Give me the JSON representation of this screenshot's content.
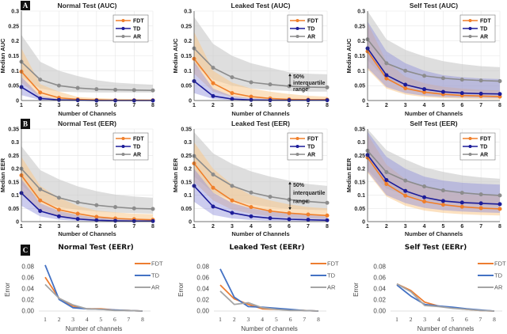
{
  "colors": {
    "FDT": "#f07f2a",
    "TD": "#1c1c99",
    "AR": "#8c8c8c",
    "FDT_band": "#f9c98d",
    "TD_band": "#8f8fd9",
    "AR_band": "#c8c8c8",
    "FDT_C": "#ed7d31",
    "TD_C": "#4472c4",
    "AR_C": "#a5a5a5"
  },
  "panel_labels": [
    "A",
    "B",
    "C"
  ],
  "legend": [
    "FDT",
    "TD",
    "AR"
  ],
  "chart_data": [
    {
      "id": "A1",
      "type": "line",
      "title": "Normal Test (AUC)",
      "xlabel": "Number of Channels",
      "ylabel": "Median AUC",
      "x": [
        1,
        2,
        3,
        4,
        5,
        6,
        7,
        8
      ],
      "xlim": [
        1,
        8
      ],
      "ylim": [
        0,
        0.3
      ],
      "yticks": [
        0,
        0.05,
        0.1,
        0.15,
        0.2,
        0.25,
        0.3
      ],
      "ytick_labels": [
        "0",
        "0.05",
        "0.1",
        "0.15",
        "0.2",
        "0.25",
        "0.3"
      ],
      "grid": true,
      "legend_position": "top-right",
      "series": [
        {
          "name": "FDT",
          "values": [
            0.097,
            0.027,
            0.009,
            0.004,
            0.002,
            0.001,
            0.001,
            0.001
          ],
          "lower": [
            0.06,
            0.01,
            0.002,
            0.001,
            0.0,
            0.0,
            0.0,
            0.0
          ],
          "upper": [
            0.175,
            0.055,
            0.03,
            0.012,
            0.008,
            0.006,
            0.005,
            0.004
          ]
        },
        {
          "name": "TD",
          "values": [
            0.045,
            0.007,
            0.002,
            0.001,
            0.0,
            0.0,
            0.0,
            0.0
          ],
          "lower": [
            0.018,
            0.002,
            0.0,
            0.0,
            0.0,
            0.0,
            0.0,
            0.0
          ],
          "upper": [
            0.08,
            0.015,
            0.005,
            0.003,
            0.002,
            0.001,
            0.001,
            0.001
          ]
        },
        {
          "name": "AR",
          "values": [
            0.13,
            0.07,
            0.05,
            0.042,
            0.038,
            0.036,
            0.035,
            0.034
          ],
          "lower": [
            0.08,
            0.04,
            0.03,
            0.028,
            0.027,
            0.027,
            0.027,
            0.027
          ],
          "upper": [
            0.22,
            0.13,
            0.1,
            0.082,
            0.068,
            0.06,
            0.056,
            0.053
          ]
        }
      ]
    },
    {
      "id": "A2",
      "type": "line",
      "title": "Leaked Test (AUC)",
      "xlabel": "Number of Channels",
      "ylabel": "Median AUC",
      "x": [
        1,
        2,
        3,
        4,
        5,
        6,
        7,
        8
      ],
      "xlim": [
        1,
        8
      ],
      "ylim": [
        0,
        0.3
      ],
      "yticks": [
        0,
        0.05,
        0.1,
        0.15,
        0.2,
        0.25,
        0.3
      ],
      "ytick_labels": [
        "0",
        "0.05",
        "0.1",
        "0.15",
        "0.2",
        "0.25",
        "0.3"
      ],
      "grid": true,
      "legend_position": "top-right",
      "annotation": {
        "text": [
          "50%",
          "interquartile",
          "range"
        ],
        "x": 6,
        "y_from": 0.045,
        "y_to": 0.09
      },
      "series": [
        {
          "name": "FDT",
          "values": [
            0.14,
            0.058,
            0.025,
            0.013,
            0.007,
            0.004,
            0.003,
            0.003
          ],
          "lower": [
            0.09,
            0.03,
            0.012,
            0.006,
            0.003,
            0.002,
            0.001,
            0.001
          ],
          "upper": [
            0.23,
            0.1,
            0.06,
            0.04,
            0.03,
            0.022,
            0.016,
            0.013
          ]
        },
        {
          "name": "TD",
          "values": [
            0.065,
            0.015,
            0.005,
            0.002,
            0.001,
            0.001,
            0.001,
            0.001
          ],
          "lower": [
            0.025,
            0.005,
            0.001,
            0.0,
            0.0,
            0.0,
            0.0,
            0.0
          ],
          "upper": [
            0.13,
            0.04,
            0.015,
            0.008,
            0.005,
            0.003,
            0.003,
            0.002
          ]
        },
        {
          "name": "AR",
          "values": [
            0.175,
            0.11,
            0.078,
            0.061,
            0.054,
            0.048,
            0.045,
            0.044
          ],
          "lower": [
            0.12,
            0.07,
            0.05,
            0.04,
            0.035,
            0.032,
            0.03,
            0.03
          ],
          "upper": [
            0.28,
            0.19,
            0.15,
            0.125,
            0.11,
            0.095,
            0.09,
            0.088
          ]
        }
      ]
    },
    {
      "id": "A3",
      "type": "line",
      "title": "Self Test (AUC)",
      "xlabel": "Number of Channels",
      "ylabel": "Median AUC",
      "x": [
        1,
        2,
        3,
        4,
        5,
        6,
        7,
        8
      ],
      "xlim": [
        1,
        8
      ],
      "ylim": [
        0,
        0.3
      ],
      "yticks": [
        0,
        0.05,
        0.1,
        0.15,
        0.2,
        0.25,
        0.3
      ],
      "ytick_labels": [
        "0",
        "0.05",
        "0.1",
        "0.15",
        "0.2",
        "0.25",
        "0.3"
      ],
      "grid": true,
      "legend_position": "top-right",
      "series": [
        {
          "name": "FDT",
          "values": [
            0.165,
            0.074,
            0.041,
            0.028,
            0.021,
            0.017,
            0.015,
            0.013
          ],
          "lower": [
            0.105,
            0.04,
            0.02,
            0.012,
            0.008,
            0.006,
            0.005,
            0.004
          ],
          "upper": [
            0.26,
            0.13,
            0.08,
            0.058,
            0.046,
            0.04,
            0.036,
            0.034
          ]
        },
        {
          "name": "TD",
          "values": [
            0.175,
            0.085,
            0.053,
            0.038,
            0.029,
            0.025,
            0.023,
            0.022
          ],
          "lower": [
            0.11,
            0.045,
            0.025,
            0.016,
            0.012,
            0.01,
            0.009,
            0.008
          ],
          "upper": [
            0.265,
            0.165,
            0.125,
            0.1,
            0.085,
            0.078,
            0.074,
            0.072
          ]
        },
        {
          "name": "AR",
          "values": [
            0.205,
            0.125,
            0.1,
            0.083,
            0.075,
            0.07,
            0.067,
            0.065
          ],
          "lower": [
            0.135,
            0.07,
            0.05,
            0.04,
            0.035,
            0.032,
            0.03,
            0.03
          ],
          "upper": [
            0.3,
            0.205,
            0.17,
            0.148,
            0.132,
            0.122,
            0.115,
            0.112
          ]
        }
      ]
    },
    {
      "id": "B1",
      "type": "line",
      "title": "Normal Test (EER)",
      "xlabel": "Number of Channels",
      "ylabel": "Median EER",
      "x": [
        1,
        2,
        3,
        4,
        5,
        6,
        7,
        8
      ],
      "xlim": [
        1,
        8
      ],
      "ylim": [
        0,
        0.35
      ],
      "yticks": [
        0,
        0.05,
        0.1,
        0.15,
        0.2,
        0.25,
        0.3,
        0.35
      ],
      "ytick_labels": [
        "0",
        "0.05",
        "0.1",
        "0.15",
        "0.2",
        "0.25",
        "0.3",
        "0.35"
      ],
      "grid": true,
      "legend_position": "top-right",
      "series": [
        {
          "name": "FDT",
          "values": [
            0.175,
            0.08,
            0.045,
            0.03,
            0.018,
            0.012,
            0.009,
            0.007
          ],
          "lower": [
            0.11,
            0.045,
            0.022,
            0.013,
            0.007,
            0.004,
            0.003,
            0.002
          ],
          "upper": [
            0.245,
            0.135,
            0.09,
            0.06,
            0.042,
            0.035,
            0.03,
            0.028
          ]
        },
        {
          "name": "TD",
          "values": [
            0.108,
            0.04,
            0.02,
            0.01,
            0.005,
            0.003,
            0.002,
            0.002
          ],
          "lower": [
            0.06,
            0.02,
            0.007,
            0.003,
            0.001,
            0.001,
            0.0,
            0.0
          ],
          "upper": [
            0.16,
            0.07,
            0.04,
            0.025,
            0.015,
            0.012,
            0.01,
            0.008
          ]
        },
        {
          "name": "AR",
          "values": [
            0.2,
            0.122,
            0.09,
            0.073,
            0.062,
            0.055,
            0.05,
            0.048
          ],
          "lower": [
            0.14,
            0.075,
            0.055,
            0.045,
            0.038,
            0.034,
            0.032,
            0.03
          ],
          "upper": [
            0.285,
            0.195,
            0.16,
            0.133,
            0.115,
            0.102,
            0.095,
            0.09
          ]
        }
      ]
    },
    {
      "id": "B2",
      "type": "line",
      "title": "Leaked Test (EER)",
      "xlabel": "Number of Channels",
      "ylabel": "Median EER",
      "x": [
        1,
        2,
        3,
        4,
        5,
        6,
        7,
        8
      ],
      "xlim": [
        1,
        8
      ],
      "ylim": [
        0,
        0.35
      ],
      "yticks": [
        0,
        0.05,
        0.1,
        0.15,
        0.2,
        0.25,
        0.3,
        0.35
      ],
      "ytick_labels": [
        "0",
        "0.05",
        "0.1",
        "0.15",
        "0.2",
        "0.25",
        "0.3",
        "0.35"
      ],
      "grid": true,
      "legend_position": "top-right",
      "annotation": {
        "text": [
          "50%",
          "interquartile",
          "range"
        ],
        "x": 6,
        "y_from": 0.045,
        "y_to": 0.15
      },
      "series": [
        {
          "name": "FDT",
          "values": [
            0.22,
            0.128,
            0.08,
            0.055,
            0.04,
            0.032,
            0.027,
            0.023
          ],
          "lower": [
            0.15,
            0.08,
            0.045,
            0.03,
            0.02,
            0.015,
            0.012,
            0.01
          ],
          "upper": [
            0.3,
            0.2,
            0.14,
            0.1,
            0.08,
            0.065,
            0.055,
            0.05
          ]
        },
        {
          "name": "TD",
          "values": [
            0.135,
            0.057,
            0.033,
            0.02,
            0.013,
            0.009,
            0.007,
            0.005
          ],
          "lower": [
            0.075,
            0.025,
            0.012,
            0.006,
            0.003,
            0.002,
            0.001,
            0.001
          ],
          "upper": [
            0.2,
            0.11,
            0.07,
            0.05,
            0.038,
            0.03,
            0.025,
            0.02
          ]
        },
        {
          "name": "AR",
          "values": [
            0.248,
            0.178,
            0.135,
            0.11,
            0.094,
            0.083,
            0.076,
            0.071
          ],
          "lower": [
            0.17,
            0.11,
            0.08,
            0.065,
            0.055,
            0.048,
            0.045,
            0.043
          ],
          "upper": [
            0.338,
            0.258,
            0.218,
            0.19,
            0.17,
            0.155,
            0.142,
            0.135
          ]
        }
      ]
    },
    {
      "id": "B3",
      "type": "line",
      "title": "Self Test (EER)",
      "xlabel": "Number of Channels",
      "ylabel": "Median EER",
      "x": [
        1,
        2,
        3,
        4,
        5,
        6,
        7,
        8
      ],
      "xlim": [
        1,
        8
      ],
      "ylim": [
        0,
        0.35
      ],
      "yticks": [
        0,
        0.05,
        0.1,
        0.15,
        0.2,
        0.25,
        0.3,
        0.35
      ],
      "ytick_labels": [
        "0",
        "0.05",
        "0.1",
        "0.15",
        "0.2",
        "0.25",
        "0.3",
        "0.35"
      ],
      "grid": true,
      "legend_position": "top-right",
      "series": [
        {
          "name": "FDT",
          "values": [
            0.242,
            0.142,
            0.098,
            0.076,
            0.064,
            0.056,
            0.051,
            0.048
          ],
          "lower": [
            0.185,
            0.095,
            0.06,
            0.042,
            0.033,
            0.028,
            0.025,
            0.023
          ],
          "upper": [
            0.33,
            0.215,
            0.16,
            0.13,
            0.115,
            0.105,
            0.1,
            0.098
          ]
        },
        {
          "name": "TD",
          "values": [
            0.252,
            0.157,
            0.116,
            0.092,
            0.078,
            0.072,
            0.069,
            0.066
          ],
          "lower": [
            0.19,
            0.1,
            0.07,
            0.052,
            0.043,
            0.038,
            0.035,
            0.033
          ],
          "upper": [
            0.34,
            0.245,
            0.2,
            0.17,
            0.155,
            0.147,
            0.143,
            0.14
          ]
        },
        {
          "name": "AR",
          "values": [
            0.268,
            0.187,
            0.155,
            0.133,
            0.118,
            0.109,
            0.103,
            0.099
          ],
          "lower": [
            0.195,
            0.125,
            0.1,
            0.083,
            0.073,
            0.067,
            0.063,
            0.06
          ],
          "upper": [
            0.35,
            0.27,
            0.235,
            0.205,
            0.188,
            0.175,
            0.167,
            0.162
          ]
        }
      ]
    },
    {
      "id": "C1",
      "type": "line",
      "title": "Normal Test (EERr)",
      "xlabel": "Number of channels",
      "ylabel": "Error",
      "x": [
        1,
        2,
        3,
        4,
        5,
        6,
        7,
        8
      ],
      "xlim": [
        1,
        8
      ],
      "ylim": [
        0,
        0.08
      ],
      "yticks": [
        0,
        0.02,
        0.04,
        0.06,
        0.08
      ],
      "ytick_labels": [
        "0.00",
        "0.02",
        "0.04",
        "0.06",
        "0.08"
      ],
      "grid": false,
      "legend_position": "right",
      "series": [
        {
          "name": "FDT",
          "values": [
            0.061,
            0.023,
            0.009,
            0.004,
            0.004,
            0.002,
            0.001,
            0.0
          ]
        },
        {
          "name": "TD",
          "values": [
            0.083,
            0.021,
            0.006,
            0.004,
            0.003,
            0.002,
            0.001,
            0.0
          ]
        },
        {
          "name": "AR",
          "values": [
            0.048,
            0.023,
            0.011,
            0.004,
            0.003,
            0.001,
            0.001,
            0.0
          ]
        }
      ]
    },
    {
      "id": "C2",
      "type": "line",
      "title": "Leaked Test (EERr)",
      "xlabel": "Number of channels",
      "ylabel": "Error",
      "x": [
        1,
        2,
        3,
        4,
        5,
        6,
        7,
        8
      ],
      "xlim": [
        1,
        8
      ],
      "ylim": [
        0,
        0.08
      ],
      "yticks": [
        0,
        0.02,
        0.04,
        0.06,
        0.08
      ],
      "ytick_labels": [
        "0.00",
        "0.02",
        "0.04",
        "0.06",
        "0.08"
      ],
      "grid": false,
      "legend_position": "right",
      "series": [
        {
          "name": "FDT",
          "values": [
            0.047,
            0.022,
            0.012,
            0.004,
            0.003,
            0.002,
            0.001,
            0.0
          ]
        },
        {
          "name": "TD",
          "values": [
            0.076,
            0.025,
            0.008,
            0.007,
            0.005,
            0.003,
            0.001,
            0.0
          ]
        },
        {
          "name": "AR",
          "values": [
            0.036,
            0.012,
            0.015,
            0.006,
            0.003,
            0.001,
            0.001,
            0.0
          ]
        }
      ]
    },
    {
      "id": "C3",
      "type": "line",
      "title": "Self Test (EERr)",
      "xlabel": "Number of channels",
      "ylabel": "Error",
      "x": [
        1,
        2,
        3,
        4,
        5,
        6,
        7,
        8
      ],
      "xlim": [
        1,
        8
      ],
      "ylim": [
        0,
        0.08
      ],
      "yticks": [
        0,
        0.02,
        0.04,
        0.06,
        0.08
      ],
      "ytick_labels": [
        "0.00",
        "0.02",
        "0.04",
        "0.06",
        "0.08"
      ],
      "grid": false,
      "legend_position": "right",
      "series": [
        {
          "name": "FDT",
          "values": [
            0.049,
            0.037,
            0.016,
            0.009,
            0.006,
            0.003,
            0.001,
            0.0
          ]
        },
        {
          "name": "TD",
          "values": [
            0.047,
            0.027,
            0.012,
            0.009,
            0.007,
            0.004,
            0.002,
            0.0
          ]
        },
        {
          "name": "AR",
          "values": [
            0.049,
            0.035,
            0.01,
            0.008,
            0.005,
            0.003,
            0.001,
            0.0
          ]
        }
      ]
    }
  ]
}
